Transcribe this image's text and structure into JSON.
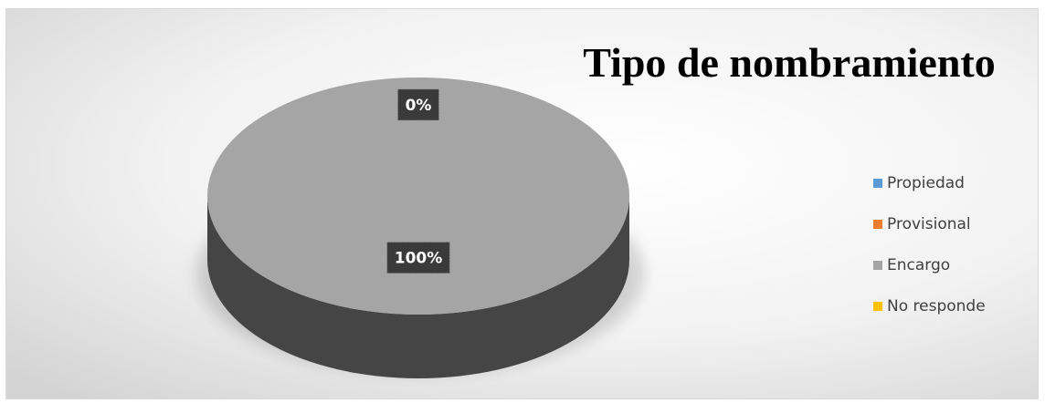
{
  "chart_data": {
    "type": "pie",
    "title": "Tipo de nombramiento",
    "categories": [
      "Propiedad",
      "Provisional",
      "Encargo",
      "No responde"
    ],
    "values": [
      0,
      0,
      100,
      0
    ],
    "value_labels": [
      "0%",
      null,
      "100%",
      null
    ],
    "colors": [
      "#5b9bd5",
      "#ed7d31",
      "#a5a5a5",
      "#ffc000"
    ],
    "legend": "right"
  }
}
